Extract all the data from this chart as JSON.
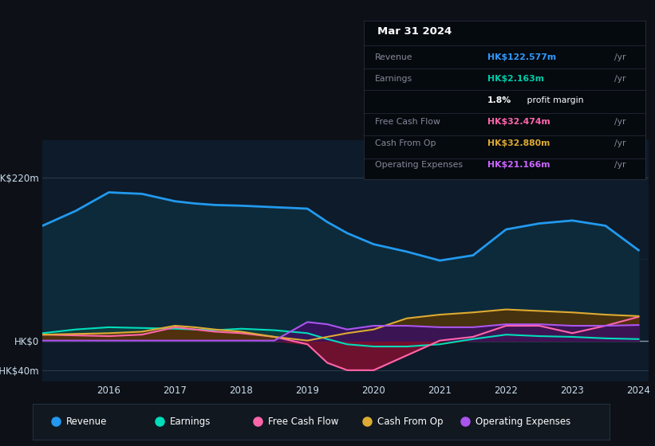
{
  "bg_color": "#0d1117",
  "chart_bg": "#0d1b2a",
  "years": [
    2015.0,
    2015.5,
    2016.0,
    2016.5,
    2017.0,
    2017.3,
    2017.6,
    2018.0,
    2018.5,
    2019.0,
    2019.3,
    2019.6,
    2020.0,
    2020.5,
    2021.0,
    2021.5,
    2022.0,
    2022.5,
    2023.0,
    2023.5,
    2024.0
  ],
  "revenue": [
    155,
    175,
    200,
    198,
    188,
    185,
    183,
    182,
    180,
    178,
    160,
    145,
    130,
    120,
    108,
    115,
    150,
    158,
    162,
    155,
    122
  ],
  "earnings": [
    10,
    15,
    18,
    17,
    16,
    15,
    14,
    16,
    14,
    10,
    2,
    -5,
    -8,
    -8,
    -5,
    2,
    8,
    6,
    5,
    3,
    2
  ],
  "free_cash": [
    8,
    7,
    6,
    8,
    18,
    15,
    12,
    10,
    5,
    -5,
    -30,
    -40,
    -40,
    -20,
    0,
    5,
    20,
    20,
    10,
    20,
    32
  ],
  "cash_from_op": [
    8,
    9,
    10,
    12,
    20,
    18,
    15,
    12,
    5,
    0,
    5,
    10,
    15,
    30,
    35,
    38,
    42,
    40,
    38,
    35,
    33
  ],
  "op_expenses": [
    0,
    0,
    0,
    0,
    0,
    0,
    0,
    0,
    0,
    25,
    22,
    15,
    20,
    20,
    18,
    18,
    22,
    22,
    20,
    20,
    21
  ],
  "rev_color": "#2299ee",
  "earn_color": "#00ddbb",
  "fcf_color": "#ff66aa",
  "cfo_color": "#ddaa33",
  "opex_color": "#aa55ee",
  "ylim_min": -55,
  "ylim_max": 270,
  "info_box": {
    "date": "Mar 31 2024",
    "revenue_val": "HK$122.577m",
    "revenue_color": "#3399ff",
    "earnings_val": "HK$2.163m",
    "earnings_color": "#00ccaa",
    "margin_val": "1.8%",
    "fcf_val": "HK$32.474m",
    "fcf_color": "#ff66aa",
    "cfo_val": "HK$32.880m",
    "cfo_color": "#ddaa33",
    "opex_val": "HK$21.166m",
    "opex_color": "#cc66ff"
  },
  "legend": [
    {
      "label": "Revenue",
      "color": "#2299ee"
    },
    {
      "label": "Earnings",
      "color": "#00ddbb"
    },
    {
      "label": "Free Cash Flow",
      "color": "#ff66aa"
    },
    {
      "label": "Cash From Op",
      "color": "#ddaa33"
    },
    {
      "label": "Operating Expenses",
      "color": "#aa55ee"
    }
  ]
}
